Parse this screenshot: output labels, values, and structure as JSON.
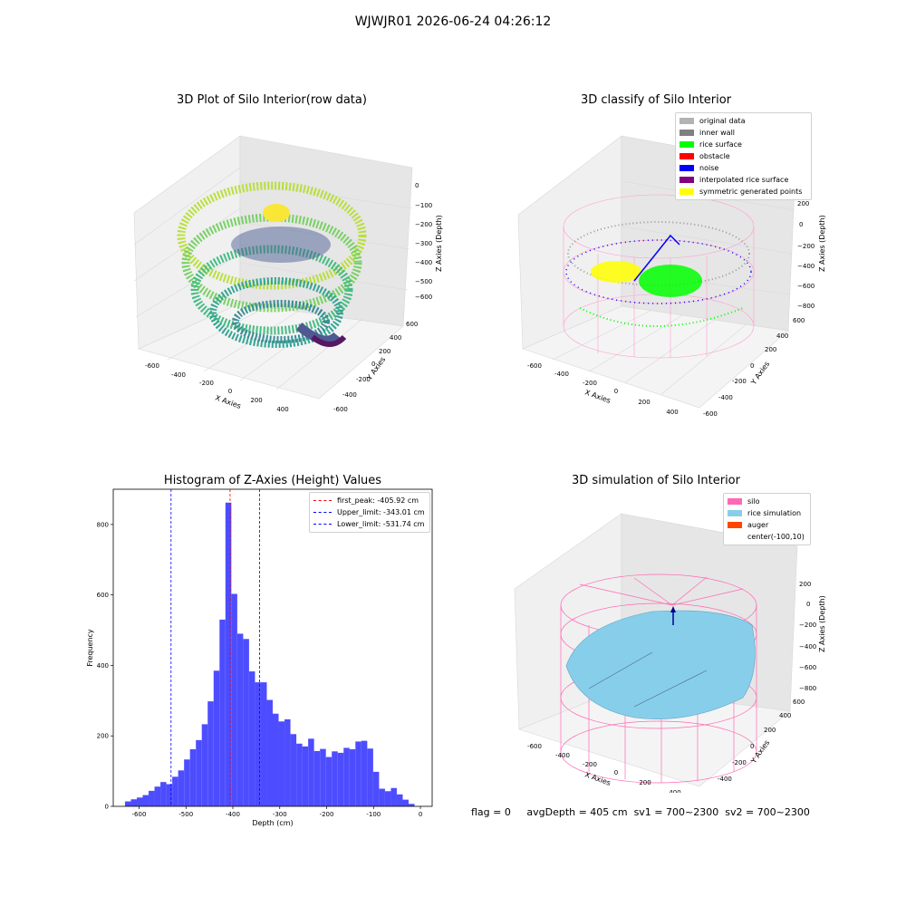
{
  "figure": {
    "suptitle": "WJWJR01 2026-06-24 04:26:12"
  },
  "chart_data": [
    {
      "type": "scatter",
      "subtype": "3d-scatter",
      "title": "3D Plot of Silo Interior(row data)",
      "xlabel": "X Axies",
      "ylabel": "Y Axies",
      "zlabel": "Z Axies (Depth)",
      "x_ticks": [
        "-600",
        "-400",
        "-200",
        "0",
        "200",
        "400"
      ],
      "y_ticks": [
        "-600",
        "-400",
        "-200",
        "0",
        "200",
        "400",
        "600"
      ],
      "z_ticks": [
        "0",
        "−100",
        "−200",
        "−300",
        "−400",
        "−500",
        "−600"
      ],
      "colormap": "viridis",
      "grid": true
    },
    {
      "type": "scatter",
      "subtype": "3d-scatter",
      "title": "3D classify of Silo Interior",
      "xlabel": "X Axies",
      "ylabel": "Y Axies",
      "zlabel": "Z Axies (Depth)",
      "x_ticks": [
        "-600",
        "-400",
        "-200",
        "0",
        "200",
        "400"
      ],
      "y_ticks": [
        "-600",
        "-400",
        "-200",
        "0",
        "200",
        "400",
        "600"
      ],
      "z_ticks": [
        "200",
        "0",
        "−200",
        "−400",
        "−600",
        "−800"
      ],
      "legend_position": "top-right",
      "legend": [
        {
          "label": "original data",
          "color": "#b3b3b3"
        },
        {
          "label": "inner wall",
          "color": "#808080"
        },
        {
          "label": "rice surface",
          "color": "#00ff00"
        },
        {
          "label": "obstacle",
          "color": "#ff0000"
        },
        {
          "label": "noise",
          "color": "#0000ff"
        },
        {
          "label": "interpolated rice surface",
          "color": "#800080"
        },
        {
          "label": "symmetric generated points",
          "color": "#ffff00"
        }
      ],
      "grid": true
    },
    {
      "type": "bar",
      "subtype": "histogram",
      "title": "Histogram of Z-Axies (Height) Values",
      "xlabel": "Depth (cm)",
      "ylabel": "Frequency",
      "xlim": [
        -655,
        25
      ],
      "ylim": [
        0,
        900
      ],
      "x_ticks": [
        -600,
        -500,
        -400,
        -300,
        -200,
        -100,
        0
      ],
      "y_ticks": [
        0,
        200,
        400,
        600,
        800
      ],
      "bin_start": -630,
      "bin_width": 12.6,
      "values": [
        14,
        20,
        25,
        32,
        44,
        56,
        69,
        63,
        84,
        102,
        133,
        162,
        188,
        233,
        298,
        385,
        530,
        862,
        603,
        490,
        475,
        383,
        352,
        352,
        302,
        263,
        241,
        247,
        205,
        178,
        170,
        192,
        157,
        163,
        140,
        156,
        152,
        166,
        162,
        184,
        186,
        164,
        98,
        50,
        43,
        52,
        34,
        19,
        7
      ],
      "bar_color": "#4d4dff",
      "vlines": [
        {
          "label": "first_peak: -405.92 cm",
          "x": -405.92,
          "color": "#ff0000"
        },
        {
          "label": "Upper_limit: -343.01 cm",
          "x": -343.01,
          "color": "#0000ff"
        },
        {
          "label": "Lower_limit: -531.74 cm",
          "x": -531.74,
          "color": "#0000ff"
        }
      ],
      "legend_position": "top-right"
    },
    {
      "type": "scatter",
      "subtype": "3d-surface",
      "title": "3D simulation of Silo Interior",
      "xlabel": "X Axies",
      "ylabel": "Y Axies",
      "zlabel": "Z Axies (Depth)",
      "x_ticks": [
        "-600",
        "-400",
        "-200",
        "0",
        "200",
        "400"
      ],
      "y_ticks": [
        "-400",
        "-200",
        "0",
        "200",
        "400",
        "600"
      ],
      "z_ticks": [
        "200",
        "0",
        "−200",
        "−400",
        "−600",
        "−800"
      ],
      "legend_position": "top-right",
      "legend": [
        {
          "label": "silo",
          "color": "#ff69b4"
        },
        {
          "label": "rice simulation",
          "color": "#87ceeb"
        },
        {
          "label": "auger",
          "color": "#ff4500"
        },
        {
          "label": "center(-100,10)",
          "color": ""
        }
      ],
      "grid": true
    }
  ],
  "status": {
    "flag": "flag = 0",
    "avg_depth": "avgDepth = 405 cm",
    "sv1": "sv1 = 700~2300",
    "sv2": "sv2 = 700~2300"
  }
}
